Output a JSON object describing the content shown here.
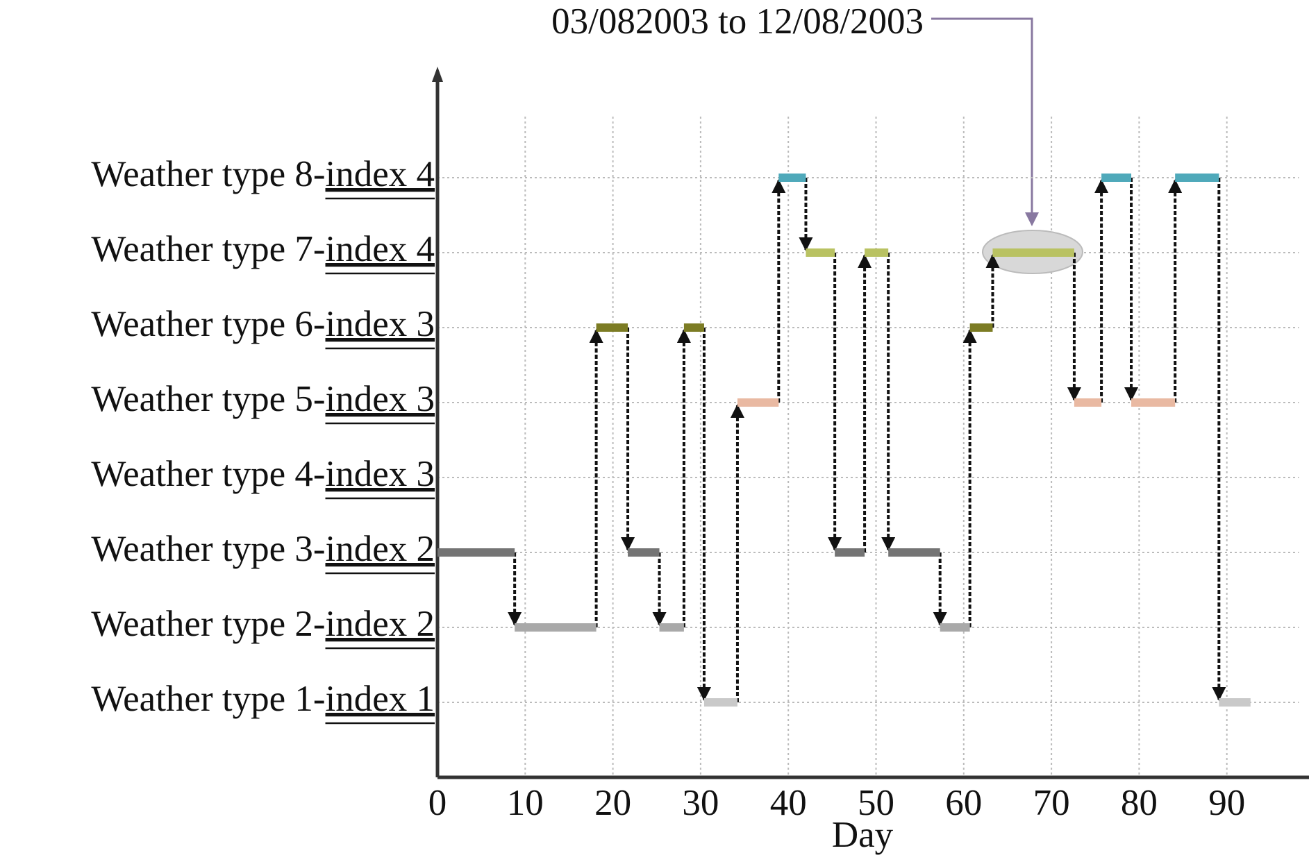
{
  "chart_data": {
    "type": "step",
    "xlabel": "Day",
    "annotation": "03/082003 to 12/08/2003",
    "x": [
      0,
      8.8,
      18.1,
      21.7,
      25.3,
      28.1,
      30.4,
      34.2,
      38.9,
      42,
      45.3,
      48.7,
      51.4,
      57.3,
      60.7,
      63.3,
      72.6,
      75.7,
      79.1,
      84.1,
      89.1
    ],
    "x_end": 92.7,
    "values": [
      3,
      2,
      6,
      3,
      2,
      6,
      1,
      5,
      8,
      7,
      3,
      7,
      3,
      2,
      6,
      7,
      5,
      8,
      5,
      8,
      1
    ],
    "type_colors": [
      "#c9c9c9",
      "#a9a9a9",
      "#747474",
      "#909090",
      "#e9b9a2",
      "#7c7c24",
      "#b9c262",
      "#4fa9ba"
    ],
    "xlim": [
      0,
      99
    ],
    "ylim": [
      0,
      9
    ],
    "xticks": [
      0,
      10,
      20,
      30,
      40,
      50,
      60,
      70,
      80,
      90
    ],
    "yticks": [
      {
        "value": 1,
        "label": "Weather type 1-",
        "index": "index 1"
      },
      {
        "value": 2,
        "label": "Weather type 2-",
        "index": "index 2"
      },
      {
        "value": 3,
        "label": "Weather type 3-",
        "index": "index 2"
      },
      {
        "value": 4,
        "label": "Weather type 4-",
        "index": "index 3"
      },
      {
        "value": 5,
        "label": "Weather type 5-",
        "index": "index 3"
      },
      {
        "value": 6,
        "label": "Weather type 6-",
        "index": "index 3"
      },
      {
        "value": 7,
        "label": "Weather type 7-",
        "index": "index 4"
      },
      {
        "value": 8,
        "label": "Weather type 8-",
        "index": "index 4"
      }
    ],
    "grid": true
  }
}
